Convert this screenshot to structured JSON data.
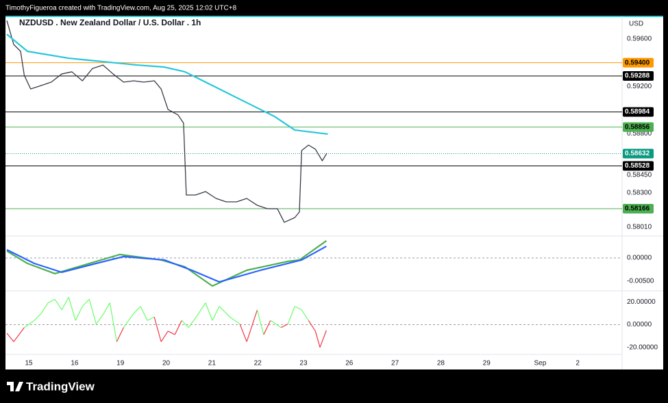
{
  "header": {
    "text": "TimothyFigueroa created with TradingView.com, Aug 25, 2025 12:02 UTC+8"
  },
  "footer": {
    "logo": "TradingView"
  },
  "chart_data": [
    {
      "type": "line",
      "title": "NZDUSD . New Zealand Dollar / U.S. Dollar . 1h",
      "currency": "USD",
      "xlim": [
        -0.51,
        12.96
      ],
      "xticks": [
        {
          "value": 0,
          "label": "15"
        },
        {
          "value": 1,
          "label": "16"
        },
        {
          "value": 2,
          "label": "19"
        },
        {
          "value": 3,
          "label": "20"
        },
        {
          "value": 4,
          "label": "21"
        },
        {
          "value": 5,
          "label": "22"
        },
        {
          "value": 6,
          "label": "23"
        },
        {
          "value": 7,
          "label": "26"
        },
        {
          "value": 8,
          "label": "27"
        },
        {
          "value": 9,
          "label": "28"
        },
        {
          "value": 10,
          "label": "29"
        },
        {
          "value": 11.17,
          "label": "Sep"
        },
        {
          "value": 11.99,
          "label": "2"
        }
      ],
      "ylim": [
        0.57935,
        0.59791
      ],
      "yticks": [
        {
          "value": 0.596,
          "label": "0.59600"
        },
        {
          "value": 0.592,
          "label": "0.59200"
        },
        {
          "value": 0.588,
          "label": "0.58800"
        },
        {
          "value": 0.5845,
          "label": "0.58450"
        },
        {
          "value": 0.583,
          "label": "0.58300"
        },
        {
          "value": 0.5801,
          "label": "0.58010"
        }
      ],
      "series": [
        {
          "color": "#363a45",
          "x": [
            -0.48,
            -0.33,
            -0.18,
            -0.1,
            0.04,
            0.27,
            0.49,
            0.72,
            0.94,
            1.17,
            1.39,
            1.62,
            1.84,
            2.07,
            2.29,
            2.51,
            2.74,
            2.89,
            3.04,
            3.26,
            3.38,
            3.44,
            3.64,
            3.86,
            4.09,
            4.31,
            4.54,
            4.76,
            4.99,
            5.21,
            5.43,
            5.58,
            5.81,
            5.91,
            5.96,
            6.11,
            6.26,
            6.41,
            6.51
          ],
          "values": [
            0.59756,
            0.59554,
            0.59496,
            0.59294,
            0.59178,
            0.59207,
            0.59236,
            0.59305,
            0.59323,
            0.59247,
            0.59351,
            0.5938,
            0.59305,
            0.59236,
            0.59247,
            0.59236,
            0.59247,
            0.59178,
            0.59005,
            0.58958,
            0.58889,
            0.58282,
            0.58282,
            0.58311,
            0.58253,
            0.58224,
            0.58224,
            0.58253,
            0.58195,
            0.58166,
            0.58166,
            0.58051,
            0.58091,
            0.58138,
            0.58658,
            0.58704,
            0.58669,
            0.58571,
            0.58635
          ]
        },
        {
          "color": "#26c6da",
          "x": [
            -0.48,
            -0.03,
            0.87,
            1.62,
            2.37,
            2.96,
            3.41,
            3.86,
            4.61,
            5.36,
            5.81,
            6.53
          ],
          "values": [
            0.5964,
            0.59496,
            0.59438,
            0.59409,
            0.5938,
            0.59363,
            0.59323,
            0.59236,
            0.59091,
            0.58947,
            0.58831,
            0.58797
          ]
        }
      ],
      "levels": {
        "values": [
          0.594,
          0.59288,
          0.58984,
          0.58856,
          0.58528,
          0.58166
        ],
        "value_labels": [
          "0.59400",
          "0.59288",
          "0.58984",
          "0.58856",
          "0.58528",
          "0.58166"
        ],
        "colors": [
          "#ff9800",
          "#000000",
          "#000000",
          "#4caf50",
          "#000000",
          "#4caf50"
        ]
      },
      "current": {
        "value": 0.58632,
        "color": "#089981"
      }
    },
    {
      "type": "line",
      "xlim": [
        -0.51,
        12.96
      ],
      "ylim": [
        -0.00706,
        0.0047
      ],
      "yticks": [
        {
          "value": 0,
          "label": "0.00000"
        },
        {
          "value": -0.005,
          "label": "-0.00500"
        }
      ],
      "zero_line": true,
      "series": [
        {
          "color": "#4caf50",
          "x": [
            -0.48,
            -0.03,
            0.57,
            1.17,
            1.99,
            2.89,
            3.41,
            4.01,
            4.76,
            5.66,
            5.91,
            6.5
          ],
          "values": [
            0.00147,
            -0.00118,
            -0.00338,
            -0.00162,
            0.00074,
            -0.00044,
            -0.00191,
            -0.00603,
            -0.00265,
            -0.00074,
            -0.00044,
            0.00368
          ]
        },
        {
          "color": "#2962ff",
          "x": [
            -0.48,
            0.12,
            0.72,
            1.47,
            2.07,
            2.96,
            3.56,
            4.16,
            5.06,
            5.96,
            6.5
          ],
          "values": [
            0.00176,
            -0.00118,
            -0.00309,
            -0.00118,
            0.00029,
            -0.00044,
            -0.00265,
            -0.00515,
            -0.00265,
            -0.00044,
            0.0025
          ]
        }
      ]
    },
    {
      "type": "oscillator",
      "xlim": [
        -0.51,
        12.96
      ],
      "ylim": [
        -26.25,
        30
      ],
      "yticks": [
        {
          "value": 20,
          "label": "20.00000"
        },
        {
          "value": 0,
          "label": "0.00000"
        },
        {
          "value": -20,
          "label": "-20.00000"
        }
      ],
      "zero_line": true,
      "up_color": "#66ff66",
      "down_color": "#f23645",
      "x": [
        -0.48,
        -0.33,
        -0.1,
        0.12,
        0.27,
        0.42,
        0.57,
        0.72,
        0.87,
        1.02,
        1.17,
        1.32,
        1.47,
        1.62,
        1.77,
        1.92,
        2.07,
        2.29,
        2.44,
        2.59,
        2.74,
        2.89,
        3.04,
        3.19,
        3.34,
        3.49,
        3.71,
        3.86,
        4.01,
        4.16,
        4.39,
        4.61,
        4.76,
        4.99,
        5.13,
        5.28,
        5.51,
        5.66,
        5.81,
        5.96,
        6.11,
        6.26,
        6.36,
        6.5
      ],
      "values": [
        -7.5,
        -15,
        -2.5,
        3.75,
        10,
        19.38,
        22.5,
        13.13,
        24.38,
        3.75,
        16.25,
        22.5,
        0.63,
        8.75,
        19.38,
        -15,
        -2.5,
        10,
        16.25,
        3.75,
        6.88,
        -15,
        -5.63,
        -8.75,
        3.75,
        -2.5,
        10,
        19.38,
        3.75,
        16.25,
        6.88,
        0.63,
        -15,
        13.13,
        -8.75,
        3.75,
        -2.5,
        0.63,
        16.25,
        13.13,
        3.75,
        -5.63,
        -20,
        -5
      ]
    }
  ]
}
